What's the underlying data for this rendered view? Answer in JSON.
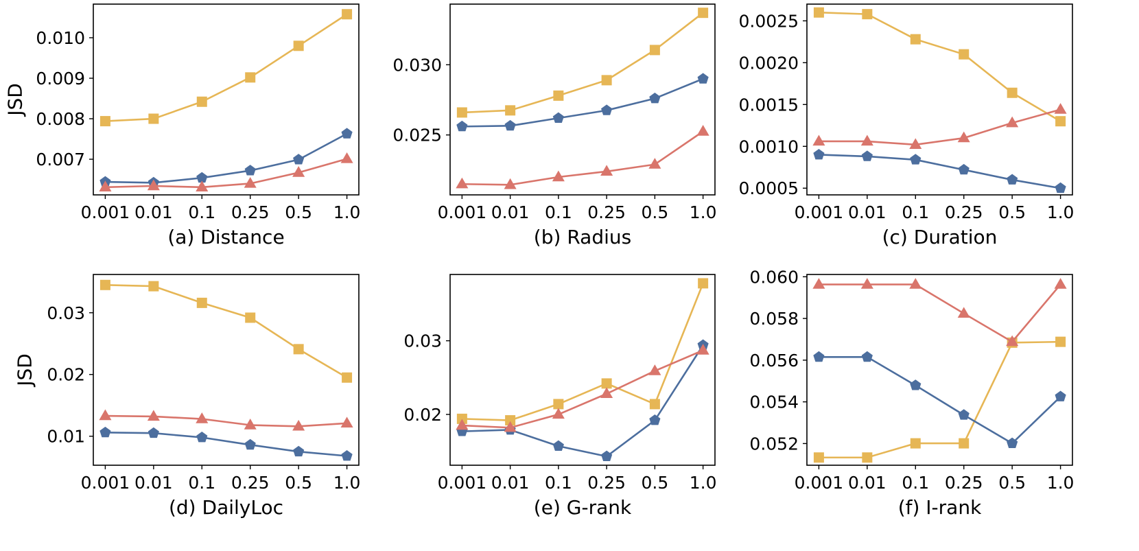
{
  "figure": {
    "ylabel": "JSD",
    "categories": [
      "0.001",
      "0.01",
      "0.1",
      "0.25",
      "0.5",
      "1.0"
    ],
    "colors": {
      "yellow": "#E6B655",
      "blue": "#4C6E9E",
      "red": "#D9756B"
    }
  },
  "chart_data": [
    {
      "type": "line",
      "title": "(a) Distance",
      "ylabel": "JSD",
      "categories": [
        "0.001",
        "0.01",
        "0.1",
        "0.25",
        "0.5",
        "1.0"
      ],
      "ylim": [
        0.00612,
        0.01083
      ],
      "yticks": [
        0.007,
        0.008,
        0.009,
        0.01
      ],
      "ytick_labels": [
        "0.007",
        "0.008",
        "0.009",
        "0.010"
      ],
      "series": [
        {
          "name": "yellow-square",
          "color": "#E6B655",
          "marker": "square",
          "values": [
            0.00794,
            0.008,
            0.00842,
            0.00902,
            0.0098,
            0.01058
          ]
        },
        {
          "name": "blue-pentagon",
          "color": "#4C6E9E",
          "marker": "pentagon",
          "values": [
            0.00644,
            0.00642,
            0.00654,
            0.00672,
            0.00699,
            0.00763
          ]
        },
        {
          "name": "red-triangle",
          "color": "#D9756B",
          "marker": "triangle",
          "values": [
            0.00631,
            0.00634,
            0.00631,
            0.0064,
            0.00667,
            0.00701
          ]
        }
      ]
    },
    {
      "type": "line",
      "title": "(b) Radius",
      "ylabel": "",
      "categories": [
        "0.001",
        "0.01",
        "0.1",
        "0.25",
        "0.5",
        "1.0"
      ],
      "ylim": [
        0.02073,
        0.03432
      ],
      "yticks": [
        0.025,
        0.03
      ],
      "ytick_labels": [
        "0.025",
        "0.030"
      ],
      "series": [
        {
          "name": "yellow-square",
          "color": "#E6B655",
          "marker": "square",
          "values": [
            0.0266,
            0.02675,
            0.0278,
            0.0289,
            0.03105,
            0.0337
          ]
        },
        {
          "name": "blue-pentagon",
          "color": "#4C6E9E",
          "marker": "pentagon",
          "values": [
            0.0256,
            0.02565,
            0.0262,
            0.02675,
            0.0276,
            0.029
          ]
        },
        {
          "name": "red-triangle",
          "color": "#D9756B",
          "marker": "triangle",
          "values": [
            0.0215,
            0.02145,
            0.022,
            0.0224,
            0.0229,
            0.02525
          ]
        }
      ]
    },
    {
      "type": "line",
      "title": "(c) Duration",
      "ylabel": "",
      "categories": [
        "0.001",
        "0.01",
        "0.1",
        "0.25",
        "0.5",
        "1.0"
      ],
      "ylim": [
        0.00042,
        0.0027
      ],
      "yticks": [
        0.0005,
        0.001,
        0.0015,
        0.002,
        0.0025
      ],
      "ytick_labels": [
        "0.0005",
        "0.0010",
        "0.0015",
        "0.0020",
        "0.0025"
      ],
      "series": [
        {
          "name": "yellow-square",
          "color": "#E6B655",
          "marker": "square",
          "values": [
            0.0026,
            0.00258,
            0.00228,
            0.0021,
            0.00164,
            0.0013
          ]
        },
        {
          "name": "blue-pentagon",
          "color": "#4C6E9E",
          "marker": "pentagon",
          "values": [
            0.0009,
            0.00088,
            0.00084,
            0.00072,
            0.0006,
            0.0005
          ]
        },
        {
          "name": "red-triangle",
          "color": "#D9756B",
          "marker": "triangle",
          "values": [
            0.00106,
            0.00106,
            0.00102,
            0.0011,
            0.00128,
            0.00144
          ]
        }
      ]
    },
    {
      "type": "line",
      "title": "(d) DailyLoc",
      "ylabel": "JSD",
      "categories": [
        "0.001",
        "0.01",
        "0.1",
        "0.25",
        "0.5",
        "1.0"
      ],
      "ylim": [
        0.0053,
        0.0362
      ],
      "yticks": [
        0.01,
        0.02,
        0.03
      ],
      "ytick_labels": [
        "0.01",
        "0.02",
        "0.03"
      ],
      "series": [
        {
          "name": "yellow-square",
          "color": "#E6B655",
          "marker": "square",
          "values": [
            0.0345,
            0.0343,
            0.0316,
            0.0292,
            0.0241,
            0.0195
          ]
        },
        {
          "name": "blue-pentagon",
          "color": "#4C6E9E",
          "marker": "pentagon",
          "values": [
            0.0106,
            0.0105,
            0.0098,
            0.0086,
            0.0075,
            0.0068
          ]
        },
        {
          "name": "red-triangle",
          "color": "#D9756B",
          "marker": "triangle",
          "values": [
            0.0133,
            0.0132,
            0.0128,
            0.0118,
            0.0116,
            0.0121
          ]
        }
      ]
    },
    {
      "type": "line",
      "title": "(e) G-rank",
      "ylabel": "",
      "categories": [
        "0.001",
        "0.01",
        "0.1",
        "0.25",
        "0.5",
        "1.0"
      ],
      "ylim": [
        0.0131,
        0.039
      ],
      "yticks": [
        0.02,
        0.03
      ],
      "ytick_labels": [
        "0.02",
        "0.03"
      ],
      "series": [
        {
          "name": "yellow-square",
          "color": "#E6B655",
          "marker": "square",
          "values": [
            0.0194,
            0.0192,
            0.0214,
            0.0242,
            0.0214,
            0.0378
          ]
        },
        {
          "name": "blue-pentagon",
          "color": "#4C6E9E",
          "marker": "pentagon",
          "values": [
            0.0177,
            0.0179,
            0.0157,
            0.0143,
            0.0192,
            0.0294
          ]
        },
        {
          "name": "red-triangle",
          "color": "#D9756B",
          "marker": "triangle",
          "values": [
            0.0185,
            0.0182,
            0.02,
            0.0228,
            0.0259,
            0.0287
          ]
        }
      ]
    },
    {
      "type": "line",
      "title": "(f) I-rank",
      "ylabel": "",
      "categories": [
        "0.001",
        "0.01",
        "0.1",
        "0.25",
        "0.5",
        "1.0"
      ],
      "ylim": [
        0.05096,
        0.06011
      ],
      "yticks": [
        0.052,
        0.054,
        0.056,
        0.058,
        0.06
      ],
      "ytick_labels": [
        "0.052",
        "0.054",
        "0.056",
        "0.058",
        "0.060"
      ],
      "series": [
        {
          "name": "yellow-square",
          "color": "#E6B655",
          "marker": "square",
          "values": [
            0.05133,
            0.05133,
            0.05201,
            0.05201,
            0.05684,
            0.05688
          ]
        },
        {
          "name": "blue-pentagon",
          "color": "#4C6E9E",
          "marker": "pentagon",
          "values": [
            0.05615,
            0.05615,
            0.05479,
            0.05337,
            0.05201,
            0.05425
          ]
        },
        {
          "name": "red-triangle",
          "color": "#D9756B",
          "marker": "triangle",
          "values": [
            0.05963,
            0.05963,
            0.05963,
            0.05824,
            0.05688,
            0.05963
          ]
        }
      ]
    }
  ]
}
